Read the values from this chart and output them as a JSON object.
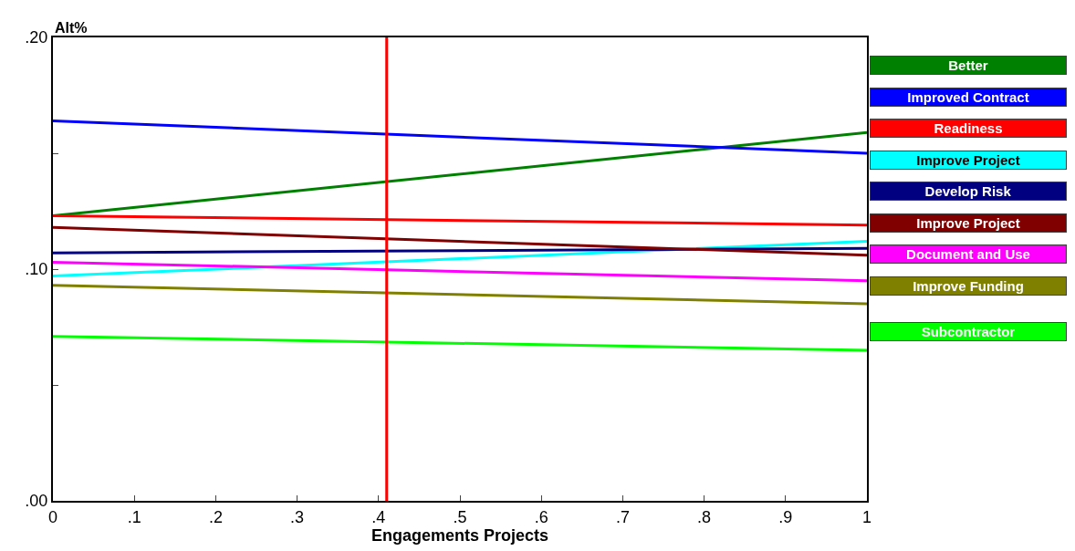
{
  "chart_data": {
    "type": "line",
    "xlabel": "Engagements Projects",
    "ylabel": "Alt%",
    "x": [
      0,
      1
    ],
    "xlim": [
      0,
      1
    ],
    "xticks": [
      0,
      {
        "value": 0.1,
        "label": ".1"
      },
      {
        "value": 0.2,
        "label": ".2"
      },
      {
        "value": 0.3,
        "label": ".3"
      },
      {
        "value": 0.4,
        "label": ".4"
      },
      {
        "value": 0.5,
        "label": ".5"
      },
      {
        "value": 0.6,
        "label": ".6"
      },
      {
        "value": 0.7,
        "label": ".7"
      },
      {
        "value": 0.8,
        "label": ".8"
      },
      {
        "value": 0.9,
        "label": ".9"
      },
      1
    ],
    "ylim": [
      0,
      0.2
    ],
    "yticks": [
      {
        "value": 0,
        "label": ".00"
      },
      {
        "value": 0.05,
        "label": null
      },
      {
        "value": 0.1,
        "label": ".10"
      },
      {
        "value": 0.15,
        "label": null
      },
      {
        "value": 0.2,
        "label": ".20"
      }
    ],
    "series": [
      {
        "name": "Better",
        "color": "#008000",
        "values": [
          0.123,
          0.159
        ]
      },
      {
        "name": "Improved Contract",
        "color": "#0000ff",
        "values": [
          0.164,
          0.15
        ]
      },
      {
        "name": "Readiness",
        "color": "#ff0000",
        "values": [
          0.123,
          0.119
        ]
      },
      {
        "name": "Improve Project",
        "color": "#00ffff",
        "values": [
          0.097,
          0.112
        ]
      },
      {
        "name": "Develop Risk",
        "color": "#000080",
        "values": [
          0.107,
          0.109
        ]
      },
      {
        "name": "Improve Project",
        "color": "#800000",
        "values": [
          0.118,
          0.106
        ]
      },
      {
        "name": "Document and Use",
        "color": "#ff00ff",
        "values": [
          0.103,
          0.095
        ]
      },
      {
        "name": "Improve Funding",
        "color": "#808000",
        "values": [
          0.093,
          0.085
        ]
      },
      {
        "name": "Subcontractor",
        "color": "#00ff00",
        "values": [
          0.071,
          0.065
        ]
      }
    ],
    "ref_lines": [
      {
        "axis": "x",
        "value": 0.41,
        "color": "#ff0000"
      }
    ],
    "legend": "right",
    "marker": "none",
    "line_style": "solid"
  }
}
